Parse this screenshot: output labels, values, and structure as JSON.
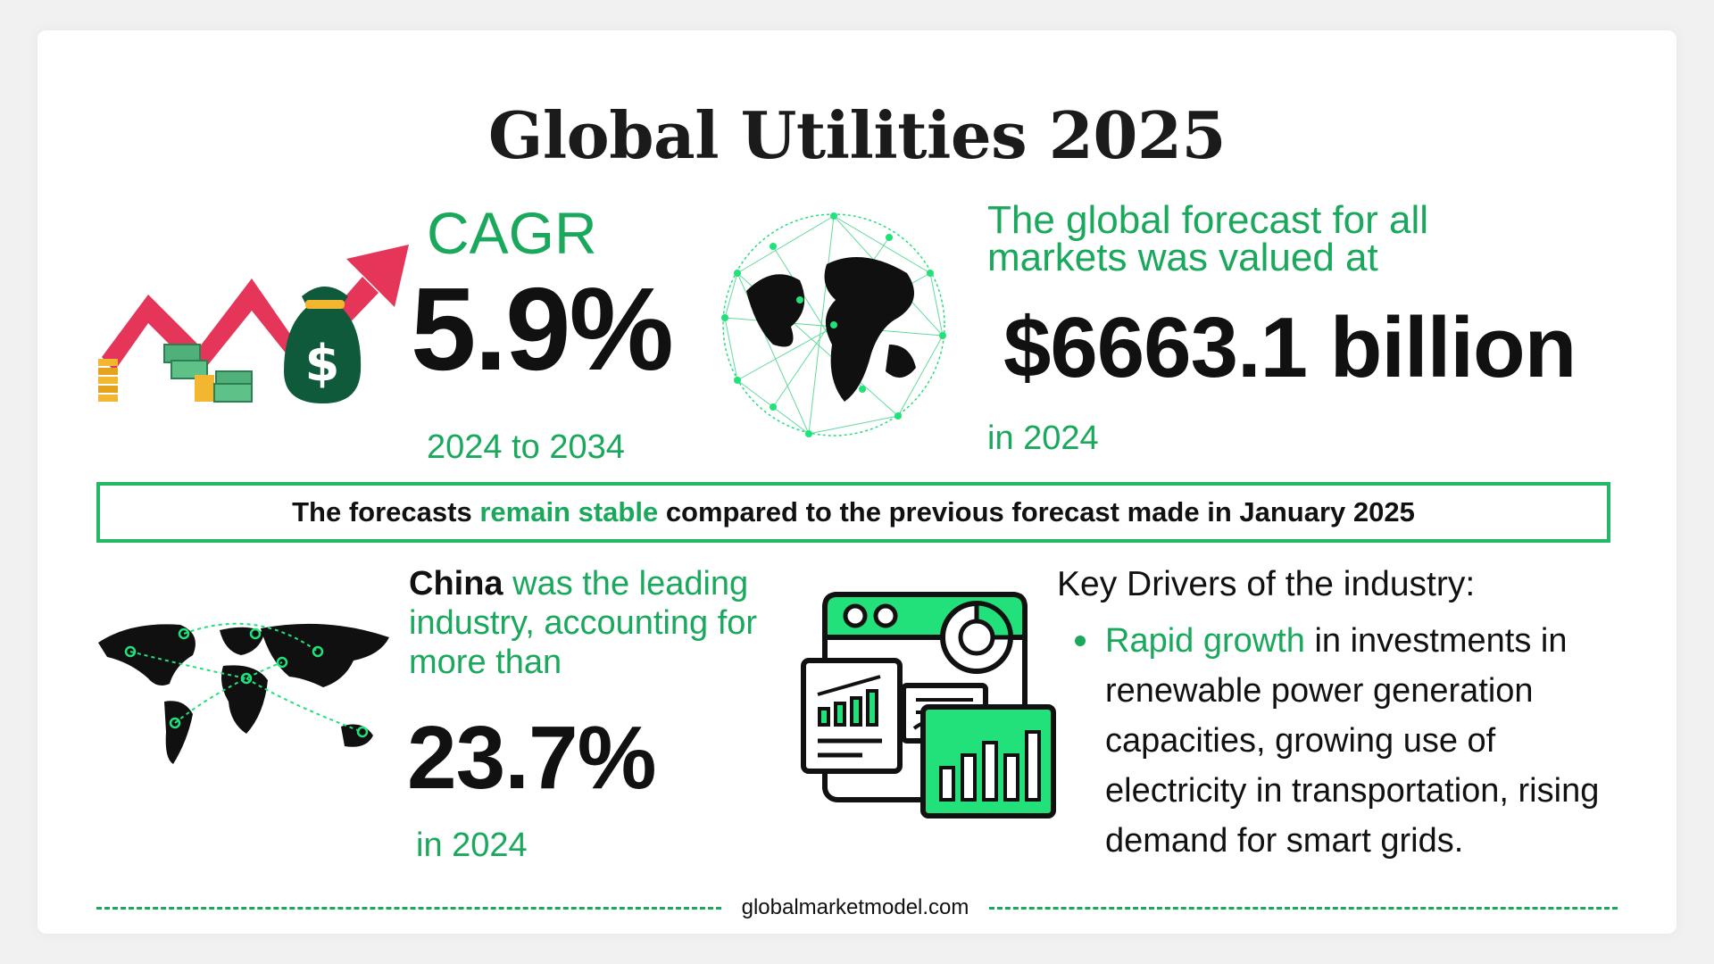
{
  "title": "Global Utilities 2025",
  "cagr": {
    "label": "CAGR",
    "value": "5.9%",
    "period": "2024 to 2034"
  },
  "market_value": {
    "intro": "The global forecast for all markets was valued at",
    "value": "$6663.1 billion",
    "year": "in 2024"
  },
  "stability": {
    "text_before": "The forecasts ",
    "highlight": "remain stable",
    "text_after": " compared to the previous forecast made in January 2025"
  },
  "leading_region": {
    "name": "China",
    "text": " was the leading industry, accounting for more than",
    "value": "23.7%",
    "year": "in 2024"
  },
  "drivers": {
    "title": "Key Drivers of the industry:",
    "items": [
      {
        "highlight": "Rapid growth",
        "text": " in investments in renewable power generation capacities, growing use of electricity in transportation, rising demand for smart grids."
      }
    ]
  },
  "footer": {
    "site": "globalmarketmodel.com"
  },
  "colors": {
    "accent": "#1aa85c",
    "bright_green": "#22e07a",
    "arrow_red": "#e5365a",
    "text": "#111111",
    "money_bag": "#0f5a3a"
  },
  "icons": {
    "growth": "growth-arrow-money-icon",
    "globe": "globe-network-icon",
    "map": "world-map-icon",
    "dashboard": "analytics-dashboard-icon"
  }
}
